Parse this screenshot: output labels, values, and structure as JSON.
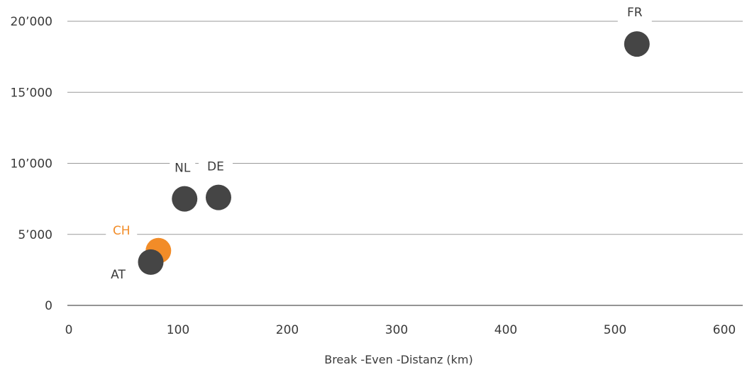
{
  "chart_data": {
    "type": "scatter",
    "title": "",
    "xlabel": "Break -Even -Distanz  (km)",
    "ylabel": "",
    "xlim": [
      0,
      600
    ],
    "ylim": [
      0,
      20000
    ],
    "x_ticks": [
      0,
      100,
      200,
      300,
      400,
      500,
      600
    ],
    "x_tick_labels": [
      "0",
      "100",
      "200",
      "300",
      "400",
      "500",
      "600"
    ],
    "y_ticks": [
      0,
      5000,
      10000,
      15000,
      20000
    ],
    "y_tick_labels": [
      "0",
      "5’000",
      "10’000",
      "15’000",
      "20’000"
    ],
    "grid": "horizontal",
    "points": [
      {
        "label": "FR",
        "x": 520,
        "y": 18400,
        "color": "#454545"
      },
      {
        "label": "DE",
        "x": 137,
        "y": 7600,
        "color": "#454545"
      },
      {
        "label": "NL",
        "x": 106,
        "y": 7500,
        "color": "#454545"
      },
      {
        "label": "CH",
        "x": 82,
        "y": 3850,
        "color": "#F28C28"
      },
      {
        "label": "AT",
        "x": 75,
        "y": 3050,
        "color": "#454545"
      }
    ],
    "colors": {
      "highlight": "#F28C28",
      "default_point": "#454545",
      "gridline": "#9a9a9a",
      "axis": "#555555",
      "text": "#3a3a3a"
    }
  }
}
